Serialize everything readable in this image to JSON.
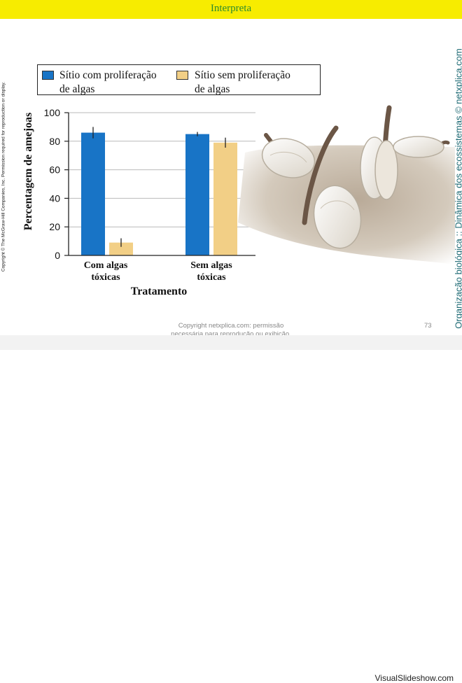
{
  "header": {
    "title": "Interpreta"
  },
  "side": {
    "copyright_left": "Copyright © The McGraw-Hill Companies, Inc. Permission required for reproduction or display.",
    "brand_right": "Organização biológica :: Dinâmica dos ecossistemas © netxplica.com"
  },
  "legend": {
    "items": [
      {
        "line1": "Sítio com proliferação",
        "line2": "de algas",
        "color": "#1874c6"
      },
      {
        "line1": "Sítio sem proliferação",
        "line2": "de algas",
        "color": "#f2cf86"
      }
    ]
  },
  "chart_data": {
    "type": "bar",
    "ylabel": "Percentagem de amejoas",
    "xlabel": "Tratamento",
    "ylim": [
      0,
      100
    ],
    "yticks": [
      "0",
      "20",
      "40",
      "60",
      "80",
      "100"
    ],
    "categories": [
      {
        "line1": "Com algas",
        "line2": "tóxicas"
      },
      {
        "line1": "Sem algas",
        "line2": "tóxicas"
      }
    ],
    "series": [
      {
        "name": "Sítio com proliferação de algas",
        "color": "#1874c6",
        "values": [
          86,
          85
        ],
        "errors": [
          4,
          1.5
        ]
      },
      {
        "name": "Sítio sem proliferação de algas",
        "color": "#f2cf86",
        "values": [
          9,
          79
        ],
        "errors": [
          3,
          3.5
        ]
      }
    ],
    "grid": true,
    "legend_position": "top"
  },
  "footer": {
    "line1": "Copyright netxplica.com: permissão",
    "line2": "necessária para reprodução ou exibição.",
    "page": "73",
    "watermark": "VisualSlideshow.com"
  }
}
